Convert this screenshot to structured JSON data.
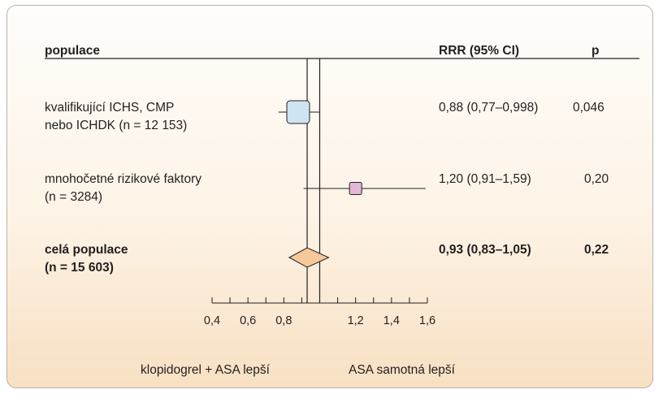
{
  "chart_data": {
    "type": "forest",
    "headers": {
      "population": "populace",
      "rrr": "RRR (95% CI)",
      "p": "p"
    },
    "rows": [
      {
        "label_lines": [
          "kvalifikující ICHS, CMP",
          "nebo ICHDK (n = 12 153)"
        ],
        "rrr": 0.88,
        "ci_low": 0.77,
        "ci_high": 0.998,
        "rrr_text": "0,88 (0,77–0,998)",
        "p_text": "0,046",
        "bold": false,
        "marker": "square",
        "color": "#cfe3f2"
      },
      {
        "label_lines": [
          "mnohočetné rizikové faktory",
          "(n = 3284)"
        ],
        "rrr": 1.2,
        "ci_low": 0.91,
        "ci_high": 1.59,
        "rrr_text": "1,20 (0,91–1,59)",
        "p_text": "0,20",
        "bold": false,
        "marker": "square",
        "color": "#e3b8d8"
      },
      {
        "label_lines": [
          "celá populace",
          "(n = 15 603)"
        ],
        "rrr": 0.93,
        "ci_low": 0.83,
        "ci_high": 1.05,
        "rrr_text": "0,93 (0,83–1,05)",
        "p_text": "0,22",
        "bold": true,
        "marker": "diamond",
        "color": "#f6c89a"
      }
    ],
    "x_ticks": [
      {
        "value": 0.4,
        "label": "0,4"
      },
      {
        "value": 0.6,
        "label": "0,6"
      },
      {
        "value": 0.8,
        "label": "0,8"
      },
      {
        "value": 1.2,
        "label": "1,2"
      },
      {
        "value": 1.4,
        "label": "1,4"
      },
      {
        "value": 1.6,
        "label": "1,6"
      }
    ],
    "xlim": [
      0.4,
      1.6
    ],
    "minor_step": 0.1,
    "reference_lines": [
      0.93,
      1.0
    ],
    "footer": {
      "left": "klopidogrel + ASA lepší",
      "right": "ASA samotná lepší"
    }
  }
}
